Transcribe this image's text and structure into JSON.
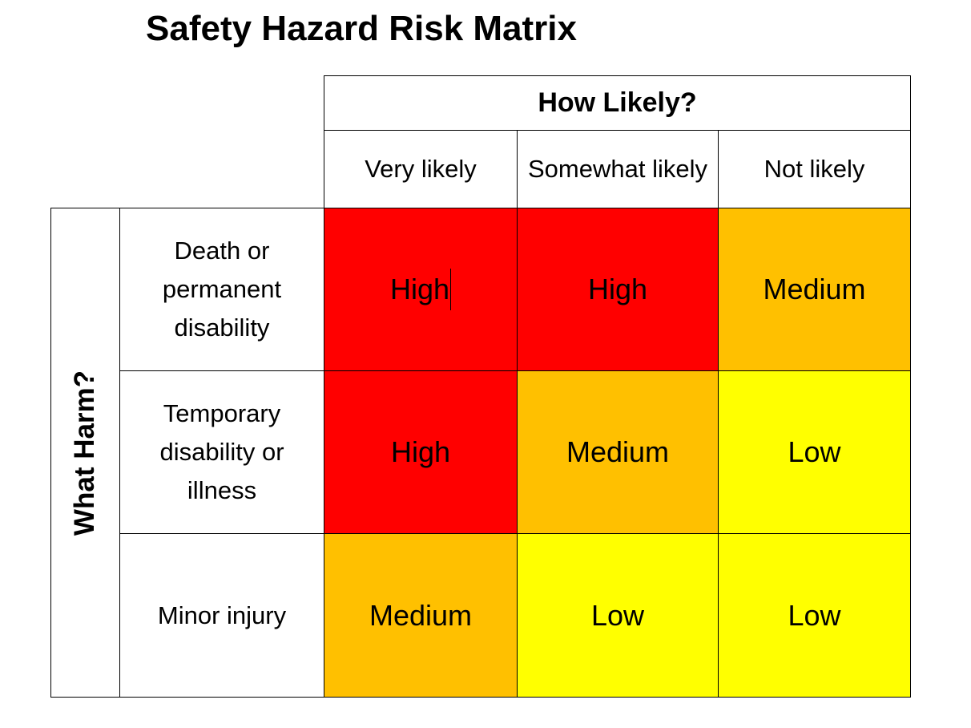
{
  "title": "Safety Hazard Risk Matrix",
  "likelihood": {
    "label": "How Likely?",
    "columns": [
      "Very likely",
      "Somewhat likely",
      "Not likely"
    ]
  },
  "harm": {
    "label": "What Harm?",
    "rows": [
      "Death or permanent disability",
      "Temporary disability or illness",
      "Minor injury"
    ]
  },
  "matrix": [
    [
      "High",
      "High",
      "Medium"
    ],
    [
      "High",
      "Medium",
      "Low"
    ],
    [
      "Medium",
      "Low",
      "Low"
    ]
  ],
  "colors": {
    "High": "#ff0000",
    "Medium": "#ffc000",
    "Low": "#ffff00"
  }
}
